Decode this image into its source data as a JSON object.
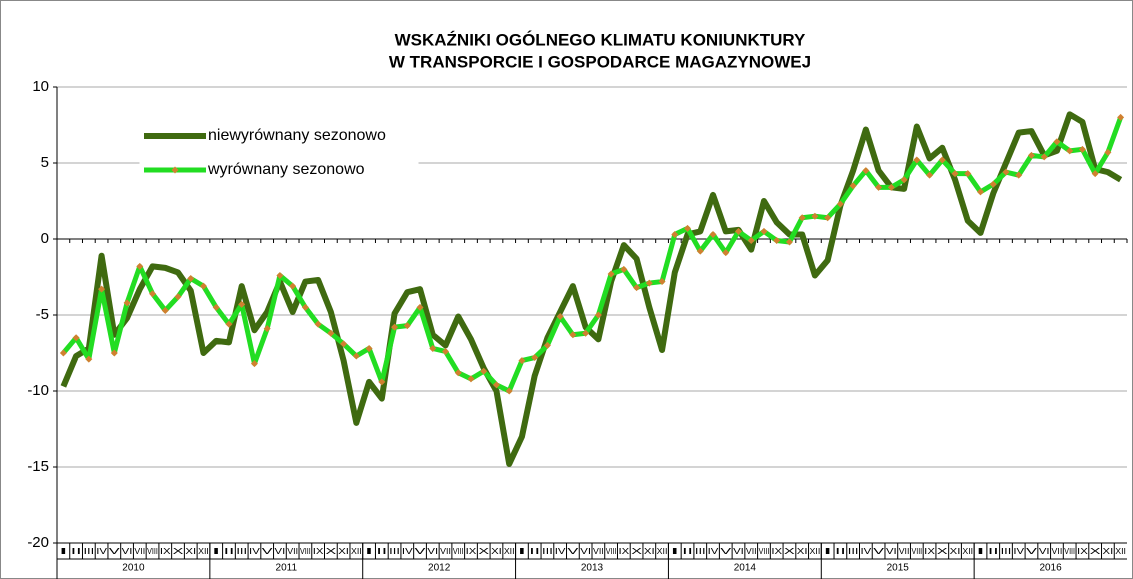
{
  "chart_data": {
    "type": "line",
    "title": [
      "WSKAŹNIKI OGÓLNEGO KLIMATU KONIUNKTURY",
      "W TRANSPORCIE I GOSPODARCE MAGAZYNOWEJ"
    ],
    "categories": [
      "I",
      "II",
      "III",
      "IV",
      "V",
      "VI",
      "VII",
      "VIII",
      "IX",
      "X",
      "XI",
      "XII",
      "I",
      "II",
      "III",
      "IV",
      "V",
      "VI",
      "VII",
      "VIII",
      "IX",
      "X",
      "XI",
      "XII",
      "I",
      "II",
      "III",
      "IV",
      "V",
      "VI",
      "VII",
      "VIII",
      "IX",
      "X",
      "XI",
      "XII",
      "I",
      "II",
      "III",
      "IV",
      "V",
      "VI",
      "VII",
      "VIII",
      "IX",
      "X",
      "XI",
      "XII",
      "I",
      "II",
      "III",
      "IV",
      "V",
      "VI",
      "VII",
      "VIII",
      "IX",
      "X",
      "XI",
      "XII",
      "I",
      "II",
      "III",
      "IV",
      "V",
      "VI",
      "VII",
      "VIII",
      "IX",
      "X",
      "XI",
      "XII",
      "I",
      "II",
      "III",
      "IV",
      "V",
      "VI",
      "VII",
      "VIII",
      "IX",
      "X",
      "XI",
      "XII"
    ],
    "years": [
      "2010",
      "2011",
      "2012",
      "2013",
      "2014",
      "2015",
      "2016"
    ],
    "series": [
      {
        "name": "niewyrównany sezonowo",
        "color": "#3f6a10",
        "values": [
          -9.7,
          -7.7,
          -7.2,
          -1.1,
          -6.3,
          -5.2,
          -3.3,
          -1.8,
          -1.9,
          -2.2,
          -3.4,
          -7.5,
          -6.7,
          -6.8,
          -3.1,
          -6.0,
          -4.8,
          -2.8,
          -4.8,
          -2.8,
          -2.7,
          -4.8,
          -8.0,
          -12.1,
          -9.4,
          -10.5,
          -4.9,
          -3.5,
          -3.3,
          -6.3,
          -7.0,
          -5.1,
          -6.6,
          -8.5,
          -10.0,
          -14.8,
          -13.0,
          -9.0,
          -6.5,
          -4.8,
          -3.1,
          -5.8,
          -6.6,
          -2.8,
          -0.4,
          -1.3,
          -4.5,
          -7.3,
          -2.2,
          0.3,
          0.5,
          2.9,
          0.5,
          0.6,
          -0.7,
          2.5,
          1.1,
          0.3,
          0.3,
          -2.4,
          -1.4,
          2.2,
          4.5,
          7.2,
          4.5,
          3.4,
          3.3,
          7.4,
          5.3,
          6.0,
          3.9,
          1.2,
          0.4,
          3.0,
          5.0,
          7.0,
          7.1,
          5.5,
          5.8,
          8.2,
          7.7,
          4.6,
          4.4,
          3.9
        ]
      },
      {
        "name": "wyrównany sezonowo",
        "color": "#22dd22",
        "marker_color": "#d08030",
        "values": [
          -7.5,
          -6.5,
          -7.9,
          -3.3,
          -7.5,
          -4.2,
          -1.8,
          -3.6,
          -4.7,
          -3.8,
          -2.6,
          -3.1,
          -4.5,
          -5.6,
          -4.3,
          -8.2,
          -5.9,
          -2.4,
          -3.1,
          -4.5,
          -5.6,
          -6.2,
          -6.9,
          -7.7,
          -7.2,
          -9.4,
          -5.8,
          -5.7,
          -4.5,
          -7.2,
          -7.4,
          -8.8,
          -9.2,
          -8.7,
          -9.6,
          -10.0,
          -8.0,
          -7.8,
          -7.0,
          -5.1,
          -6.3,
          -6.2,
          -5.0,
          -2.3,
          -2.0,
          -3.2,
          -2.9,
          -2.8,
          0.3,
          0.7,
          -0.8,
          0.3,
          -0.9,
          0.5,
          -0.1,
          0.5,
          -0.1,
          -0.2,
          1.4,
          1.5,
          1.4,
          2.3,
          3.5,
          4.5,
          3.4,
          3.4,
          3.9,
          5.2,
          4.2,
          5.2,
          4.3,
          4.3,
          3.1,
          3.6,
          4.4,
          4.2,
          5.5,
          5.4,
          6.4,
          5.8,
          5.9,
          4.3,
          5.7,
          8.0
        ]
      }
    ],
    "ylim": [
      -20,
      10
    ],
    "yticks": [
      -20,
      -15,
      -10,
      -5,
      0,
      5,
      10
    ],
    "grid": true,
    "legend": "upper left"
  }
}
